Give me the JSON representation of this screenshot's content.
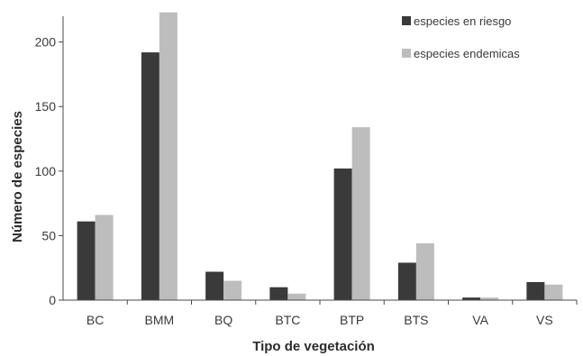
{
  "chart_data": {
    "type": "bar",
    "categories": [
      "BC",
      "BMM",
      "BQ",
      "BTC",
      "BTP",
      "BTS",
      "VA",
      "VS"
    ],
    "series": [
      {
        "name": "especies en riesgo",
        "color": "#3a3a3a",
        "values": [
          61,
          192,
          22,
          10,
          102,
          29,
          2,
          14
        ]
      },
      {
        "name": "especies endemicas",
        "color": "#bdbdbd",
        "values": [
          66,
          223,
          15,
          5,
          134,
          44,
          2,
          12
        ]
      }
    ],
    "title": "",
    "xlabel": "Tipo de vegetación",
    "ylabel": "Número de especies",
    "ylim": [
      0,
      220
    ],
    "yticks": [
      0,
      50,
      100,
      150,
      200
    ],
    "grid": false,
    "legend_position": "top-right"
  }
}
